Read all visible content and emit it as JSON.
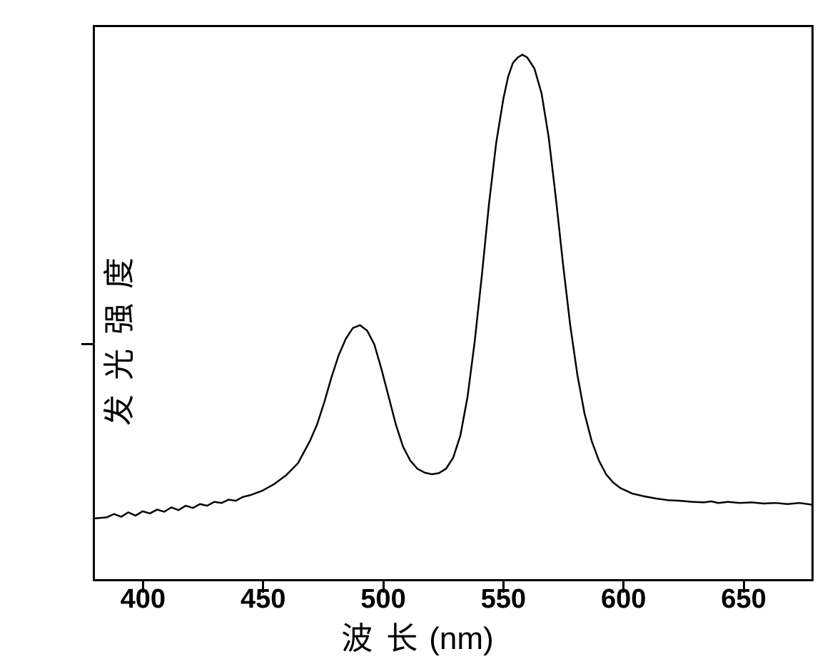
{
  "chart": {
    "type": "line",
    "xlabel": "波 长",
    "xlabel_unit": "(nm)",
    "ylabel": "发光强度",
    "background_color": "#ffffff",
    "border_color": "#000000",
    "border_width": 3,
    "line_color": "#000000",
    "line_width": 2.5,
    "xlim": [
      380,
      680
    ],
    "ylim": [
      0,
      100
    ],
    "x_ticks": [
      400,
      450,
      500,
      550,
      600,
      650
    ],
    "x_tick_labels": [
      "400",
      "450",
      "500",
      "550",
      "600",
      "650"
    ],
    "y_tick_positions": [
      43
    ],
    "tick_fontsize": 38,
    "label_fontsize": 44,
    "tick_length": 16,
    "data_points": [
      {
        "x": 380,
        "y": 11
      },
      {
        "x": 385,
        "y": 11.2
      },
      {
        "x": 388,
        "y": 11.8
      },
      {
        "x": 391,
        "y": 11.3
      },
      {
        "x": 394,
        "y": 12.1
      },
      {
        "x": 397,
        "y": 11.5
      },
      {
        "x": 400,
        "y": 12.3
      },
      {
        "x": 403,
        "y": 11.9
      },
      {
        "x": 406,
        "y": 12.6
      },
      {
        "x": 409,
        "y": 12.2
      },
      {
        "x": 412,
        "y": 13.0
      },
      {
        "x": 415,
        "y": 12.5
      },
      {
        "x": 418,
        "y": 13.3
      },
      {
        "x": 421,
        "y": 12.9
      },
      {
        "x": 424,
        "y": 13.6
      },
      {
        "x": 427,
        "y": 13.3
      },
      {
        "x": 430,
        "y": 14.0
      },
      {
        "x": 433,
        "y": 13.8
      },
      {
        "x": 436,
        "y": 14.4
      },
      {
        "x": 439,
        "y": 14.2
      },
      {
        "x": 442,
        "y": 14.9
      },
      {
        "x": 445,
        "y": 15.2
      },
      {
        "x": 450,
        "y": 16.0
      },
      {
        "x": 455,
        "y": 17.2
      },
      {
        "x": 460,
        "y": 18.8
      },
      {
        "x": 465,
        "y": 21.0
      },
      {
        "x": 470,
        "y": 25.0
      },
      {
        "x": 473,
        "y": 28.0
      },
      {
        "x": 476,
        "y": 32.0
      },
      {
        "x": 479,
        "y": 36.5
      },
      {
        "x": 482,
        "y": 40.5
      },
      {
        "x": 485,
        "y": 43.5
      },
      {
        "x": 488,
        "y": 45.5
      },
      {
        "x": 491,
        "y": 46.0
      },
      {
        "x": 494,
        "y": 45.0
      },
      {
        "x": 497,
        "y": 42.5
      },
      {
        "x": 500,
        "y": 38.0
      },
      {
        "x": 503,
        "y": 33.0
      },
      {
        "x": 506,
        "y": 28.0
      },
      {
        "x": 509,
        "y": 24.0
      },
      {
        "x": 512,
        "y": 21.5
      },
      {
        "x": 515,
        "y": 20.0
      },
      {
        "x": 518,
        "y": 19.3
      },
      {
        "x": 521,
        "y": 19.0
      },
      {
        "x": 524,
        "y": 19.2
      },
      {
        "x": 527,
        "y": 20.0
      },
      {
        "x": 530,
        "y": 22.0
      },
      {
        "x": 533,
        "y": 26.0
      },
      {
        "x": 536,
        "y": 33.0
      },
      {
        "x": 539,
        "y": 43.0
      },
      {
        "x": 542,
        "y": 55.0
      },
      {
        "x": 545,
        "y": 68.0
      },
      {
        "x": 548,
        "y": 79.0
      },
      {
        "x": 551,
        "y": 87.0
      },
      {
        "x": 553,
        "y": 91.0
      },
      {
        "x": 555,
        "y": 93.5
      },
      {
        "x": 557,
        "y": 94.5
      },
      {
        "x": 559,
        "y": 95.0
      },
      {
        "x": 561,
        "y": 94.5
      },
      {
        "x": 564,
        "y": 92.5
      },
      {
        "x": 567,
        "y": 88.0
      },
      {
        "x": 570,
        "y": 80.0
      },
      {
        "x": 573,
        "y": 69.0
      },
      {
        "x": 576,
        "y": 57.0
      },
      {
        "x": 579,
        "y": 46.0
      },
      {
        "x": 582,
        "y": 37.0
      },
      {
        "x": 585,
        "y": 30.0
      },
      {
        "x": 588,
        "y": 25.0
      },
      {
        "x": 591,
        "y": 21.5
      },
      {
        "x": 594,
        "y": 19.0
      },
      {
        "x": 597,
        "y": 17.5
      },
      {
        "x": 600,
        "y": 16.5
      },
      {
        "x": 605,
        "y": 15.5
      },
      {
        "x": 610,
        "y": 15.0
      },
      {
        "x": 615,
        "y": 14.6
      },
      {
        "x": 620,
        "y": 14.3
      },
      {
        "x": 625,
        "y": 14.2
      },
      {
        "x": 630,
        "y": 14.0
      },
      {
        "x": 635,
        "y": 13.9
      },
      {
        "x": 638,
        "y": 14.1
      },
      {
        "x": 641,
        "y": 13.8
      },
      {
        "x": 645,
        "y": 14.0
      },
      {
        "x": 650,
        "y": 13.8
      },
      {
        "x": 655,
        "y": 13.9
      },
      {
        "x": 660,
        "y": 13.7
      },
      {
        "x": 665,
        "y": 13.8
      },
      {
        "x": 670,
        "y": 13.6
      },
      {
        "x": 675,
        "y": 13.8
      },
      {
        "x": 680,
        "y": 13.5
      }
    ]
  }
}
